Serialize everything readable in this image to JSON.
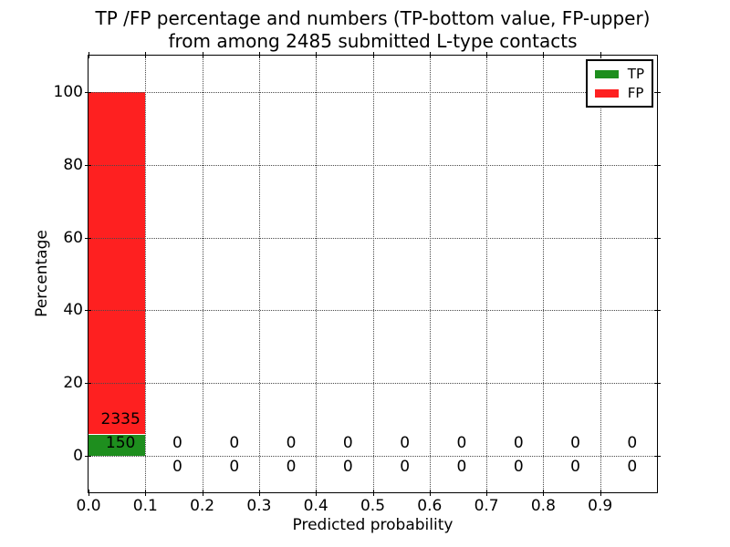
{
  "title": {
    "line1": "TP /FP percentage and numbers (TP-bottom value, FP-upper)",
    "line2": "from among 2485 submitted L-type contacts"
  },
  "axes": {
    "xlabel": "Predicted probability",
    "ylabel": "Percentage",
    "x_tick_labels": [
      "0.0",
      "0.1",
      "0.2",
      "0.3",
      "0.4",
      "0.5",
      "0.6",
      "0.7",
      "0.8",
      "0.9"
    ],
    "x_tick_values": [
      0.0,
      0.1,
      0.2,
      0.3,
      0.4,
      0.5,
      0.6,
      0.7,
      0.8,
      0.9
    ],
    "y_tick_labels": [
      "0",
      "20",
      "40",
      "60",
      "80",
      "100"
    ],
    "y_tick_values": [
      0,
      20,
      40,
      60,
      80,
      100
    ],
    "grid_style": "dotted"
  },
  "legend": {
    "position": "upper-right",
    "entries": [
      {
        "label": "TP",
        "color": "#1e8e1e"
      },
      {
        "label": "FP",
        "color": "#fe2020"
      }
    ]
  },
  "chart_data": {
    "type": "bar",
    "stacked": true,
    "title": "TP /FP percentage and numbers (TP-bottom value, FP-upper) from among 2485 submitted L-type contacts",
    "xlabel": "Predicted probability",
    "ylabel": "Percentage",
    "xlim": [
      0.0,
      1.0
    ],
    "ylim": [
      -10,
      110
    ],
    "grid": "dotted",
    "legend_position": "upper-right",
    "total_submitted": 2485,
    "bin_width": 0.1,
    "bin_starts": [
      0.0,
      0.1,
      0.2,
      0.3,
      0.4,
      0.5,
      0.6,
      0.7,
      0.8,
      0.9
    ],
    "series": [
      {
        "name": "TP",
        "color": "#1e8e1e",
        "counts": [
          150,
          0,
          0,
          0,
          0,
          0,
          0,
          0,
          0,
          0
        ],
        "percent": [
          6.04,
          0,
          0,
          0,
          0,
          0,
          0,
          0,
          0,
          0
        ]
      },
      {
        "name": "FP",
        "color": "#fe2020",
        "counts": [
          2335,
          0,
          0,
          0,
          0,
          0,
          0,
          0,
          0,
          0
        ],
        "percent": [
          93.96,
          0,
          0,
          0,
          0,
          0,
          0,
          0,
          0,
          0
        ]
      }
    ]
  }
}
